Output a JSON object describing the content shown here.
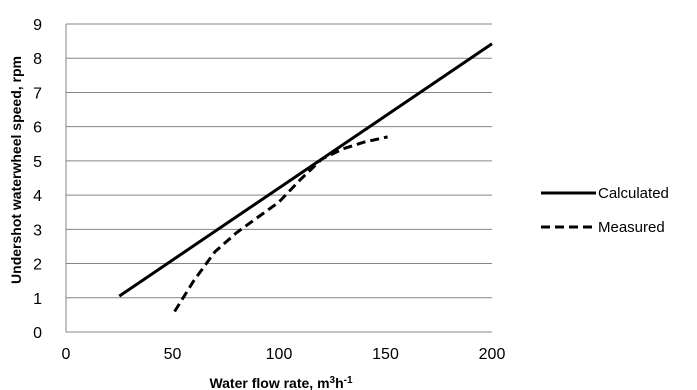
{
  "chart_data": {
    "type": "line",
    "title": "",
    "xlabel": "Water flow rate, m",
    "xlabel_sup1": "3",
    "xlabel_mid": "h",
    "xlabel_sup2": "-1",
    "ylabel": "Undershot waterwheel  speed, rpm",
    "xlim": [
      0,
      200
    ],
    "ylim": [
      0,
      9
    ],
    "xticks": [
      0,
      50,
      100,
      150,
      200
    ],
    "yticks": [
      0,
      1,
      2,
      3,
      4,
      5,
      6,
      7,
      8,
      9
    ],
    "grid": "horizontal",
    "legend_position": "right",
    "series": [
      {
        "name": "Calculated",
        "style": "solid",
        "color": "#000000",
        "x": [
          25,
          200
        ],
        "y": [
          1.05,
          8.42
        ]
      },
      {
        "name": "Measured",
        "style": "dashed",
        "color": "#000000",
        "x": [
          51,
          60,
          70,
          80,
          90,
          100,
          110,
          120,
          130,
          140,
          151
        ],
        "y": [
          0.6,
          1.5,
          2.35,
          2.9,
          3.35,
          3.8,
          4.45,
          5.05,
          5.35,
          5.55,
          5.7
        ]
      }
    ]
  }
}
